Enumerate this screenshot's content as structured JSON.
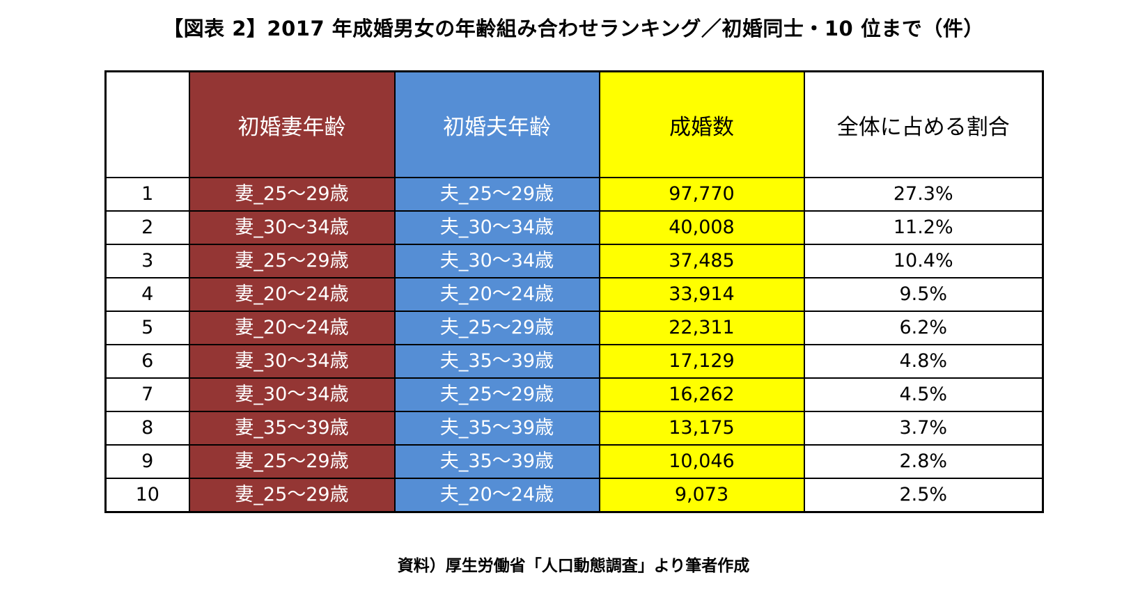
{
  "title": "【図表 2】2017 年成婚男女の年齢組み合わせランキング／初婚同士・10 位まで（件）",
  "source": "資料）厚生労働省「人口動態調査」より筆者作成",
  "colors": {
    "wife_column": "#943634",
    "husband_column": "#558ed5",
    "count_column": "#ffff00",
    "share_column": "#ffffff"
  },
  "chart_data": {
    "type": "table",
    "title": "【図表 2】2017 年成婚男女の年齢組み合わせランキング／初婚同士・10 位まで（件）",
    "columns": [
      "",
      "初婚妻年齢",
      "初婚夫年齢",
      "成婚数",
      "全体に占める割合"
    ],
    "rows": [
      {
        "rank": "1",
        "wife": "妻_25～29歳",
        "husband": "夫_25～29歳",
        "count": "97,770",
        "share": "27.3%"
      },
      {
        "rank": "2",
        "wife": "妻_30～34歳",
        "husband": "夫_30～34歳",
        "count": "40,008",
        "share": "11.2%"
      },
      {
        "rank": "3",
        "wife": "妻_25～29歳",
        "husband": "夫_30～34歳",
        "count": "37,485",
        "share": "10.4%"
      },
      {
        "rank": "4",
        "wife": "妻_20～24歳",
        "husband": "夫_20～24歳",
        "count": "33,914",
        "share": "9.5%"
      },
      {
        "rank": "5",
        "wife": "妻_20～24歳",
        "husband": "夫_25～29歳",
        "count": "22,311",
        "share": "6.2%"
      },
      {
        "rank": "6",
        "wife": "妻_30～34歳",
        "husband": "夫_35～39歳",
        "count": "17,129",
        "share": "4.8%"
      },
      {
        "rank": "7",
        "wife": "妻_30～34歳",
        "husband": "夫_25～29歳",
        "count": "16,262",
        "share": "4.5%"
      },
      {
        "rank": "8",
        "wife": "妻_35～39歳",
        "husband": "夫_35～39歳",
        "count": "13,175",
        "share": "3.7%"
      },
      {
        "rank": "9",
        "wife": "妻_25～29歳",
        "husband": "夫_35～39歳",
        "count": "10,046",
        "share": "2.8%"
      },
      {
        "rank": "10",
        "wife": "妻_25～29歳",
        "husband": "夫_20～24歳",
        "count": "9,073",
        "share": "2.5%"
      }
    ]
  }
}
